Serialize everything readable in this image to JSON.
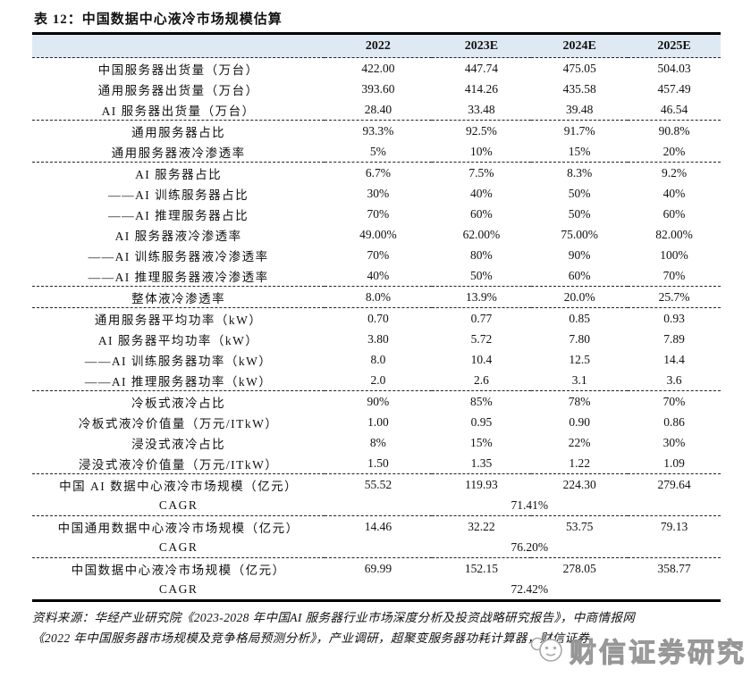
{
  "page": {
    "title": "表 12：中国数据中心液冷市场规模估算"
  },
  "header": {
    "cols": [
      "2022",
      "2023E",
      "2024E",
      "2025E"
    ]
  },
  "table": {
    "groups": [
      {
        "rows": [
          {
            "label": "中国服务器出货量（万台）",
            "values": [
              "422.00",
              "447.74",
              "475.05",
              "504.03"
            ]
          },
          {
            "label": "通用服务器出货量（万台）",
            "values": [
              "393.60",
              "414.26",
              "435.58",
              "457.49"
            ]
          },
          {
            "label": "AI 服务器出货量（万台）",
            "values": [
              "28.40",
              "33.48",
              "39.48",
              "46.54"
            ]
          }
        ]
      },
      {
        "rows": [
          {
            "label": "通用服务器占比",
            "values": [
              "93.3%",
              "92.5%",
              "91.7%",
              "90.8%"
            ]
          },
          {
            "label": "通用服务器液冷渗透率",
            "values": [
              "5%",
              "10%",
              "15%",
              "20%"
            ]
          }
        ]
      },
      {
        "rows": [
          {
            "label": "AI 服务器占比",
            "values": [
              "6.7%",
              "7.5%",
              "8.3%",
              "9.2%"
            ]
          },
          {
            "label": "——AI 训练服务器占比",
            "values": [
              "30%",
              "40%",
              "50%",
              "40%"
            ]
          },
          {
            "label": "——AI 推理服务器占比",
            "values": [
              "70%",
              "60%",
              "50%",
              "60%"
            ]
          },
          {
            "label": "AI 服务器液冷渗透率",
            "values": [
              "49.00%",
              "62.00%",
              "75.00%",
              "82.00%"
            ]
          },
          {
            "label": "——AI 训练服务器液冷渗透率",
            "values": [
              "70%",
              "80%",
              "90%",
              "100%"
            ]
          },
          {
            "label": "——AI 推理服务器液冷渗透率",
            "values": [
              "40%",
              "50%",
              "60%",
              "70%"
            ]
          }
        ]
      },
      {
        "rows": [
          {
            "label": "整体液冷渗透率",
            "values": [
              "8.0%",
              "13.9%",
              "20.0%",
              "25.7%"
            ]
          }
        ]
      },
      {
        "rows": [
          {
            "label": "通用服务器平均功率（kW）",
            "values": [
              "0.70",
              "0.77",
              "0.85",
              "0.93"
            ]
          },
          {
            "label": "AI 服务器平均功率（kW）",
            "values": [
              "3.80",
              "5.72",
              "7.80",
              "7.89"
            ]
          },
          {
            "label": "——AI 训练服务器功率（kW）",
            "values": [
              "8.0",
              "10.4",
              "12.5",
              "14.4"
            ]
          },
          {
            "label": "——AI 推理服务器功率（kW）",
            "values": [
              "2.0",
              "2.6",
              "3.1",
              "3.6"
            ]
          }
        ]
      },
      {
        "rows": [
          {
            "label": "冷板式液冷占比",
            "values": [
              "90%",
              "85%",
              "78%",
              "70%"
            ]
          },
          {
            "label": "冷板式液冷价值量（万元/ITkW）",
            "values": [
              "1.00",
              "0.95",
              "0.90",
              "0.86"
            ]
          },
          {
            "label": "浸没式液冷占比",
            "values": [
              "8%",
              "15%",
              "22%",
              "30%"
            ]
          },
          {
            "label": "浸没式液冷价值量（万元/ITkW）",
            "values": [
              "1.50",
              "1.35",
              "1.22",
              "1.09"
            ]
          }
        ]
      },
      {
        "rows": [
          {
            "label": "中国 AI 数据中心液冷市场规模（亿元）",
            "values": [
              "55.52",
              "119.93",
              "224.30",
              "279.64"
            ]
          },
          {
            "label": "CAGR",
            "span_value": "71.41%"
          }
        ]
      },
      {
        "rows": [
          {
            "label": "中国通用数据中心液冷市场规模（亿元）",
            "values": [
              "14.46",
              "32.22",
              "53.75",
              "79.13"
            ]
          },
          {
            "label": "CAGR",
            "span_value": "76.20%"
          }
        ]
      },
      {
        "rows": [
          {
            "label": "中国数据中心液冷市场规模（亿元）",
            "values": [
              "69.99",
              "152.15",
              "278.05",
              "358.77"
            ]
          },
          {
            "label": "CAGR",
            "span_value": "72.42%"
          }
        ]
      }
    ]
  },
  "footer": {
    "line1": "资料来源：华经产业研究院《2023-2028 年中国AI 服务器行业市场深度分析及投资战略研究报告》，中商情报网",
    "line2": "《2022 年中国服务器市场规模及竞争格局预测分析》，产业调研，超聚变服务器功耗计算器，财信证券"
  },
  "watermark": {
    "text": "财信证券研究",
    "logo": "chat-bubble-face-icon"
  },
  "colors": {
    "header_bg": "#dfe9f3",
    "rule": "#000000",
    "watermark": "#9a9a9a"
  }
}
